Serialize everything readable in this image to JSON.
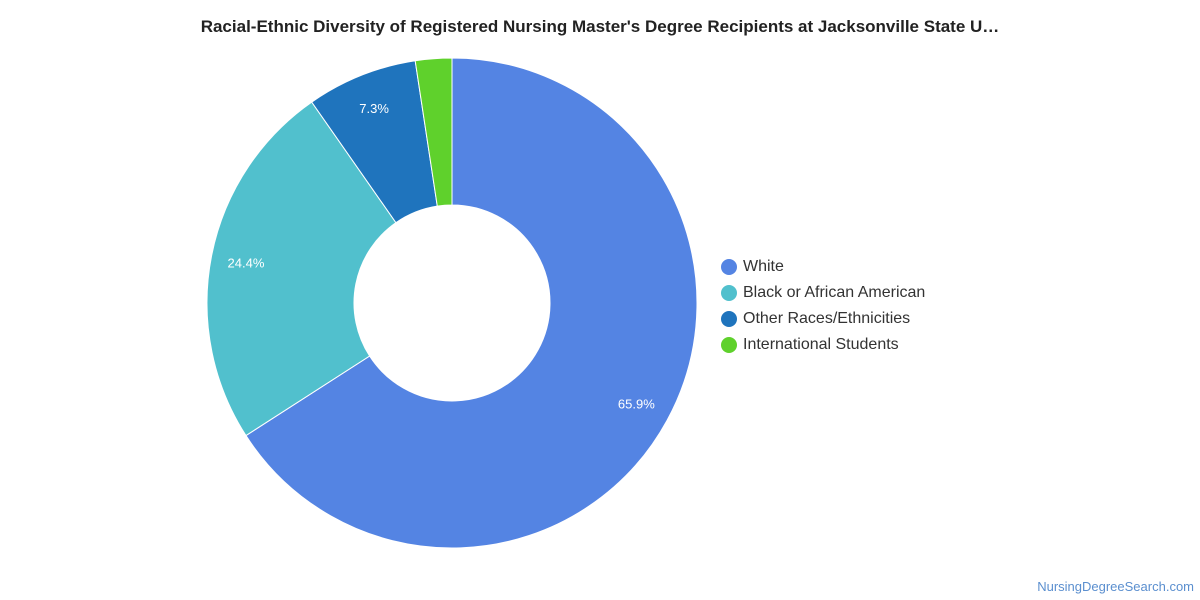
{
  "chart_data": {
    "type": "pie",
    "donut": true,
    "title": "Racial-Ethnic Diversity of Registered Nursing Master's Degree Recipients at Jacksonville State U…",
    "categories": [
      "White",
      "Black or African American",
      "Other Races/Ethnicities",
      "International Students"
    ],
    "values": [
      65.9,
      24.4,
      7.3,
      2.4
    ],
    "value_labels": [
      "65.9%",
      "24.4%",
      "7.3%",
      ""
    ],
    "colors": [
      "#5484e3",
      "#51c0cd",
      "#1f74bd",
      "#5fd12c"
    ],
    "legend_position": "right"
  },
  "credit": "NursingDegreeSearch.com"
}
